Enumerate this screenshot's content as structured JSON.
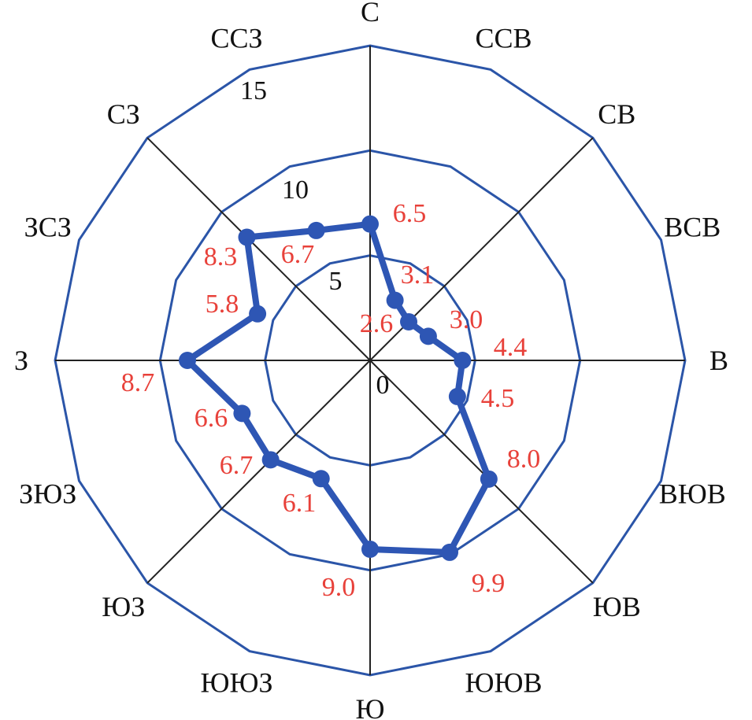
{
  "chart_data": {
    "type": "radar",
    "categories": [
      "С",
      "ССВ",
      "СВ",
      "ВСВ",
      "В",
      "ВЮВ",
      "ЮВ",
      "ЮЮВ",
      "Ю",
      "ЮЮЗ",
      "ЮЗ",
      "ЗЮЗ",
      "З",
      "ЗСЗ",
      "СЗ",
      "ССЗ"
    ],
    "values": [
      6.5,
      3.1,
      2.6,
      3.0,
      4.4,
      4.5,
      8.0,
      9.9,
      9.0,
      6.1,
      6.7,
      6.6,
      8.7,
      5.8,
      8.3,
      6.7
    ],
    "value_labels": [
      "6.5",
      "3.1",
      "2.6",
      "3.0",
      "4.4",
      "4.5",
      "8.0",
      "9.9",
      "9.0",
      "6.1",
      "6.7",
      "6.6",
      "8.7",
      "5.8",
      "8.3",
      "6.7"
    ],
    "radial_ticks": [
      "0",
      "5",
      "10",
      "15"
    ],
    "radial_tick_values": [
      0,
      5,
      10,
      15
    ],
    "rlim": [
      0,
      15
    ],
    "grid": true,
    "colors": {
      "grid": "#2b55a8",
      "series": "#2e56b4",
      "value_labels": "#e8413a",
      "spokes": "#222222"
    }
  }
}
